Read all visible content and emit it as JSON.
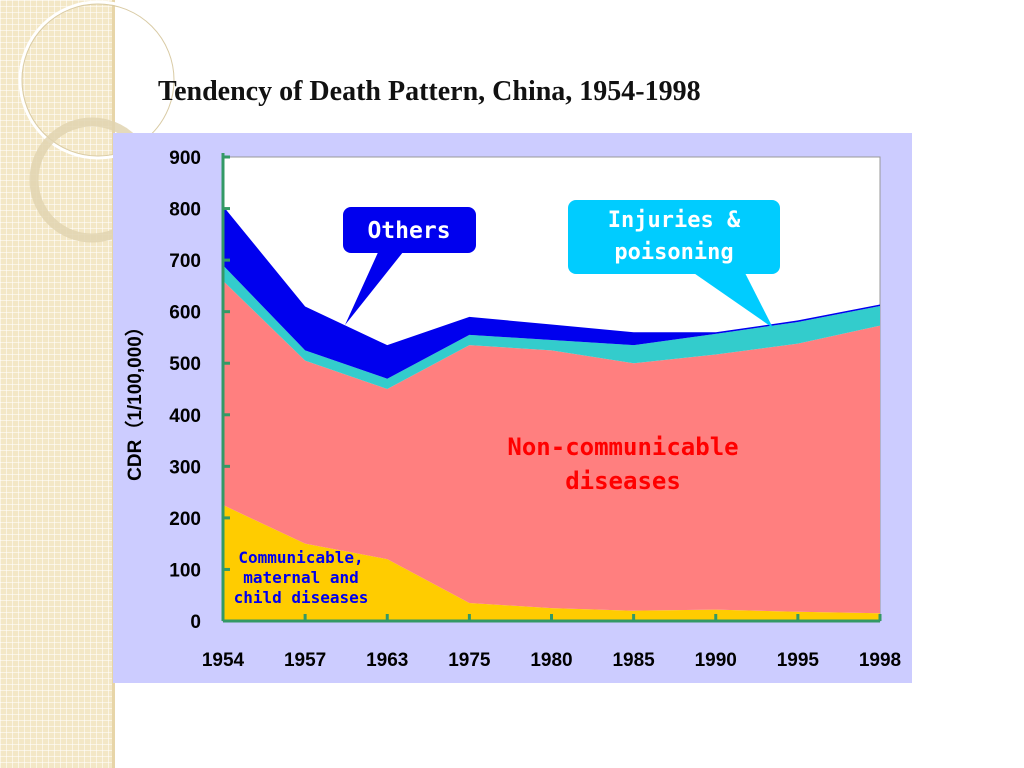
{
  "slide": {
    "title": "Tendency of Death Pattern, China, 1954-1998",
    "background": "#ffffff",
    "strip_color": "#f3e7c6"
  },
  "chart_data": {
    "type": "area",
    "stacked": true,
    "categories": [
      "1954",
      "1957",
      "1963",
      "1975",
      "1980",
      "1985",
      "1990",
      "1995",
      "1998"
    ],
    "ylabel": "CDR（1/100,000）",
    "ylim": [
      0,
      900
    ],
    "yticks": [
      "0",
      "100",
      "200",
      "300",
      "400",
      "500",
      "600",
      "700",
      "800",
      "900"
    ],
    "grid": false,
    "plot_background": "#ffffff",
    "frame_background": "#ccccff",
    "series": [
      {
        "key": "communicable",
        "values": [
          225,
          150,
          120,
          35,
          25,
          20,
          22,
          18,
          15
        ],
        "color": "#ffcc00"
      },
      {
        "key": "non_communicable",
        "values": [
          435,
          355,
          330,
          500,
          500,
          480,
          495,
          520,
          558
        ],
        "color": "#ff7f7f"
      },
      {
        "key": "injuries",
        "values": [
          30,
          20,
          20,
          20,
          20,
          35,
          40,
          42,
          38
        ],
        "color": "#33cccc"
      },
      {
        "key": "others",
        "values": [
          115,
          85,
          65,
          35,
          30,
          25,
          3,
          3,
          3
        ],
        "color": "#0000ee"
      }
    ],
    "annotations": {
      "others_callout": "Others",
      "injuries_callout_line1": "Injuries &",
      "injuries_callout_line2": "poisoning",
      "ncd_line1": "Non-communicable",
      "ncd_line2": "diseases",
      "comm_line1": "Communicable,",
      "comm_line2": "maternal and",
      "comm_line3": "child diseases"
    },
    "colors": {
      "others_callout_fill": "#0000ee",
      "injuries_callout_fill": "#00ccff",
      "ncd_text": "#ff0000",
      "comm_text": "#0000ee",
      "axis": "#339966"
    }
  }
}
